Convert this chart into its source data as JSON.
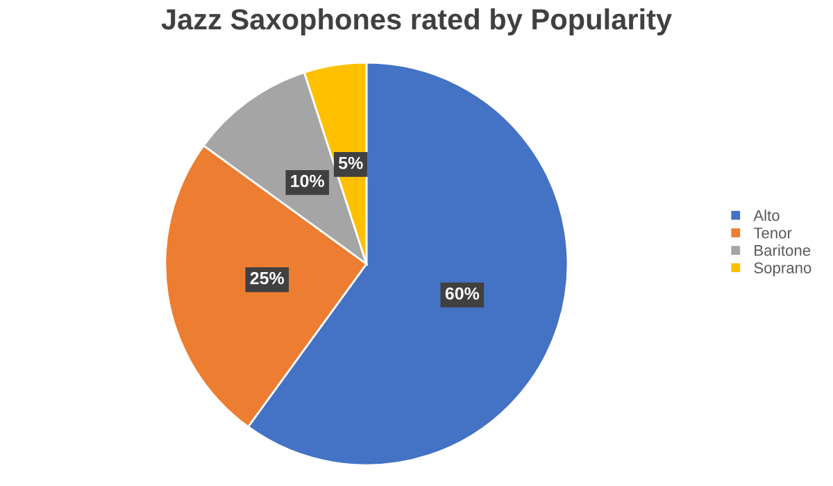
{
  "chart_data": {
    "type": "pie",
    "title": "Jazz Saxophones rated by Popularity",
    "categories": [
      "Alto",
      "Tenor",
      "Baritone",
      "Soprano"
    ],
    "values": [
      60,
      25,
      10,
      5
    ],
    "colors": [
      "#4472c4",
      "#ed7d31",
      "#a5a5a5",
      "#ffc000"
    ],
    "value_labels": [
      "60%",
      "25%",
      "10%",
      "5%"
    ],
    "legend": "right"
  }
}
